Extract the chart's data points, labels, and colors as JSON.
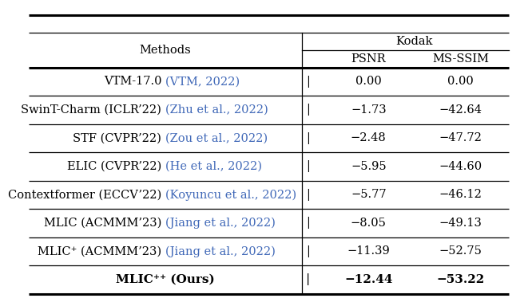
{
  "col_headers": [
    "Methods",
    "PSNR",
    "MS-SSIM"
  ],
  "dataset_label": "Kodak",
  "rows": [
    {
      "method_black": "VTM-17.0 ",
      "method_blue": "(VTM, 2022)",
      "psnr": "0.00",
      "msssim": "0.00",
      "bold": false
    },
    {
      "method_black": "SwinT-Charm (ICLR’22) ",
      "method_blue": "(Zhu et al., 2022)",
      "psnr": "−1.73",
      "msssim": "−42.64",
      "bold": false
    },
    {
      "method_black": "STF (CVPR’22) ",
      "method_blue": "(Zou et al., 2022)",
      "psnr": "−2.48",
      "msssim": "−47.72",
      "bold": false
    },
    {
      "method_black": "ELIC (CVPR’22) ",
      "method_blue": "(He et al., 2022)",
      "psnr": "−5.95",
      "msssim": "−44.60",
      "bold": false
    },
    {
      "method_black": "Contextformer (ECCV’22) ",
      "method_blue": "(Koyuncu et al., 2022)",
      "psnr": "−5.77",
      "msssim": "−46.12",
      "bold": false
    },
    {
      "method_black": "MLIC (ACMMM’23) ",
      "method_blue": "(Jiang et al., 2022)",
      "psnr": "−8.05",
      "msssim": "−49.13",
      "bold": false
    },
    {
      "method_black": "MLIC⁺ (ACMMM’23) ",
      "method_blue": "(Jiang et al., 2022)",
      "psnr": "−11.39",
      "msssim": "−52.75",
      "bold": false
    },
    {
      "method_black": "MLIC⁺⁺ (Ours)",
      "method_blue": "",
      "psnr": "−12.44",
      "msssim": "−53.22",
      "bold": true
    }
  ],
  "blue_color": "#4169B8",
  "black_color": "#000000",
  "bg_color": "#ffffff",
  "line_color": "#000000",
  "fig_width": 6.4,
  "fig_height": 3.64,
  "fontsize": 10.5
}
